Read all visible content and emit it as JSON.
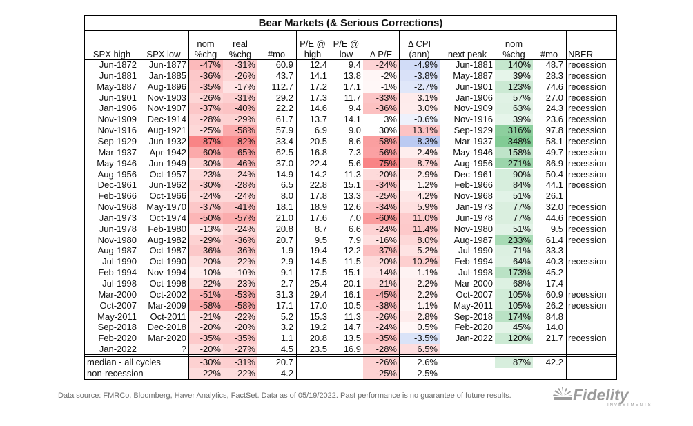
{
  "chart_data": {
    "type": "table",
    "title": "Bear Markets (& Serious Corrections)",
    "header_top": {
      "c2": "nom",
      "c3": "real",
      "c5": "P/E @",
      "c6": "P/E @",
      "c8": "Δ CPI",
      "c10": "nom"
    },
    "columns": [
      "SPX high",
      "SPX low",
      "%chg",
      "%chg",
      "#mo",
      "high",
      "low",
      "Δ P/E",
      "(ann)",
      "next peak",
      "%chg",
      "#mo",
      "NBER"
    ],
    "rows": [
      [
        "Jun-1872",
        "Jun-1877",
        "-47%",
        "-31%",
        "60.9",
        "12.4",
        "9.4",
        "-24%",
        "-4.9%",
        "Jun-1881",
        "140%",
        "48.7",
        "recession"
      ],
      [
        "Jun-1881",
        "Jan-1885",
        "-36%",
        "-26%",
        "43.7",
        "14.1",
        "13.8",
        "-2%",
        "-3.8%",
        "May-1887",
        "39%",
        "28.3",
        "recession"
      ],
      [
        "May-1887",
        "Aug-1896",
        "-35%",
        "-17%",
        "112.7",
        "17.2",
        "17.1",
        "-1%",
        "-2.7%",
        "Jun-1901",
        "123%",
        "74.6",
        "recession"
      ],
      [
        "Jun-1901",
        "Nov-1903",
        "-26%",
        "-31%",
        "29.2",
        "17.3",
        "11.7",
        "-33%",
        "3.1%",
        "Jan-1906",
        "57%",
        "27.0",
        "recession"
      ],
      [
        "Jan-1906",
        "Nov-1907",
        "-37%",
        "-40%",
        "22.2",
        "14.6",
        "9.4",
        "-36%",
        "3.0%",
        "Nov-1909",
        "63%",
        "24.3",
        "recession"
      ],
      [
        "Nov-1909",
        "Dec-1914",
        "-28%",
        "-29%",
        "61.7",
        "13.7",
        "14.1",
        "3%",
        "-0.6%",
        "Nov-1916",
        "39%",
        "23.6",
        "recession"
      ],
      [
        "Nov-1916",
        "Aug-1921",
        "-25%",
        "-58%",
        "57.9",
        "6.9",
        "9.0",
        "30%",
        "13.1%",
        "Sep-1929",
        "316%",
        "97.8",
        "recession"
      ],
      [
        "Sep-1929",
        "Jun-1932",
        "-87%",
        "-82%",
        "33.4",
        "20.5",
        "8.6",
        "-58%",
        "-8.3%",
        "Mar-1937",
        "348%",
        "58.1",
        "recession"
      ],
      [
        "Mar-1937",
        "Apr-1942",
        "-60%",
        "-65%",
        "62.5",
        "16.8",
        "7.3",
        "-56%",
        "2.4%",
        "May-1946",
        "158%",
        "49.7",
        "recession"
      ],
      [
        "May-1946",
        "Jun-1949",
        "-30%",
        "-46%",
        "37.0",
        "22.4",
        "5.6",
        "-75%",
        "8.7%",
        "Aug-1956",
        "271%",
        "86.9",
        "recession"
      ],
      [
        "Aug-1956",
        "Oct-1957",
        "-23%",
        "-24%",
        "14.9",
        "14.2",
        "11.3",
        "-20%",
        "2.9%",
        "Dec-1961",
        "90%",
        "50.4",
        "recession"
      ],
      [
        "Dec-1961",
        "Jun-1962",
        "-30%",
        "-28%",
        "6.5",
        "22.8",
        "15.1",
        "-34%",
        "1.2%",
        "Feb-1966",
        "84%",
        "44.1",
        "recession"
      ],
      [
        "Feb-1966",
        "Oct-1966",
        "-24%",
        "-24%",
        "8.0",
        "17.8",
        "13.3",
        "-25%",
        "4.2%",
        "Nov-1968",
        "51%",
        "26.1",
        ""
      ],
      [
        "Nov-1968",
        "May-1970",
        "-37%",
        "-41%",
        "18.1",
        "18.9",
        "12.6",
        "-34%",
        "5.9%",
        "Jan-1973",
        "77%",
        "32.0",
        "recession"
      ],
      [
        "Jan-1973",
        "Oct-1974",
        "-50%",
        "-57%",
        "21.0",
        "17.6",
        "7.0",
        "-60%",
        "11.0%",
        "Jun-1978",
        "77%",
        "44.6",
        "recession"
      ],
      [
        "Jun-1978",
        "Feb-1980",
        "-13%",
        "-24%",
        "20.8",
        "8.7",
        "6.6",
        "-24%",
        "11.4%",
        "Nov-1980",
        "51%",
        "9.5",
        "recession"
      ],
      [
        "Nov-1980",
        "Aug-1982",
        "-29%",
        "-36%",
        "20.7",
        "9.5",
        "7.9",
        "-16%",
        "8.0%",
        "Aug-1987",
        "233%",
        "61.4",
        "recession"
      ],
      [
        "Aug-1987",
        "Oct-1987",
        "-36%",
        "-36%",
        "1.9",
        "19.4",
        "12.2",
        "-37%",
        "5.2%",
        "Jul-1990",
        "71%",
        "33.3",
        ""
      ],
      [
        "Jul-1990",
        "Oct-1990",
        "-20%",
        "-22%",
        "2.9",
        "14.5",
        "11.5",
        "-20%",
        "10.2%",
        "Feb-1994",
        "64%",
        "40.3",
        "recession"
      ],
      [
        "Feb-1994",
        "Nov-1994",
        "-10%",
        "-10%",
        "9.1",
        "17.5",
        "15.1",
        "-14%",
        "1.1%",
        "Jul-1998",
        "173%",
        "45.2",
        ""
      ],
      [
        "Jul-1998",
        "Oct-1998",
        "-22%",
        "-23%",
        "2.7",
        "25.4",
        "20.1",
        "-21%",
        "2.2%",
        "Mar-2000",
        "68%",
        "17.4",
        ""
      ],
      [
        "Mar-2000",
        "Oct-2002",
        "-51%",
        "-53%",
        "31.3",
        "29.4",
        "16.1",
        "-45%",
        "2.2%",
        "Oct-2007",
        "105%",
        "60.9",
        "recession"
      ],
      [
        "Oct-2007",
        "Mar-2009",
        "-58%",
        "-58%",
        "17.1",
        "17.0",
        "10.5",
        "-38%",
        "1.1%",
        "May-2011",
        "105%",
        "26.2",
        "recession"
      ],
      [
        "May-2011",
        "Oct-2011",
        "-21%",
        "-22%",
        "5.2",
        "15.3",
        "11.3",
        "-26%",
        "2.8%",
        "Sep-2018",
        "174%",
        "84.8",
        ""
      ],
      [
        "Sep-2018",
        "Dec-2018",
        "-20%",
        "-20%",
        "3.2",
        "19.2",
        "14.7",
        "-24%",
        "0.5%",
        "Feb-2020",
        "45%",
        "14.0",
        ""
      ],
      [
        "Feb-2020",
        "Mar-2020",
        "-35%",
        "-35%",
        "1.1",
        "20.8",
        "13.5",
        "-35%",
        "-3.5%",
        "Jan-2022",
        "120%",
        "21.7",
        "recession"
      ],
      [
        "Jan-2022",
        "?",
        "-20%",
        "-27%",
        "4.5",
        "23.5",
        "16.9",
        "-28%",
        "6.5%",
        "",
        "",
        "",
        ""
      ]
    ],
    "summary": [
      {
        "label": "median - all cycles",
        "nom": "-30%",
        "real": "-31%",
        "mo": "20.7",
        "dpe": "-26%",
        "cpi": "2.6%",
        "next_nom": "87%",
        "next_mo": "42.2"
      },
      {
        "label": "non-recession",
        "nom": "-22%",
        "real": "-22%",
        "mo": "4.2",
        "dpe": "-25%",
        "cpi": "2.5%",
        "next_nom": "",
        "next_mo": ""
      }
    ]
  },
  "footer": {
    "source": "Data source: FMRCo, Bloomberg, Haver Analytics, FactSet. Data as of 05/19/2022. Past performance is no guarantee of future results.",
    "logo_text": "Fidelity",
    "logo_sub": "INVESTMENTS"
  },
  "colors": {
    "red_scale": "#f8696b",
    "green_scale": "#63be7b"
  }
}
